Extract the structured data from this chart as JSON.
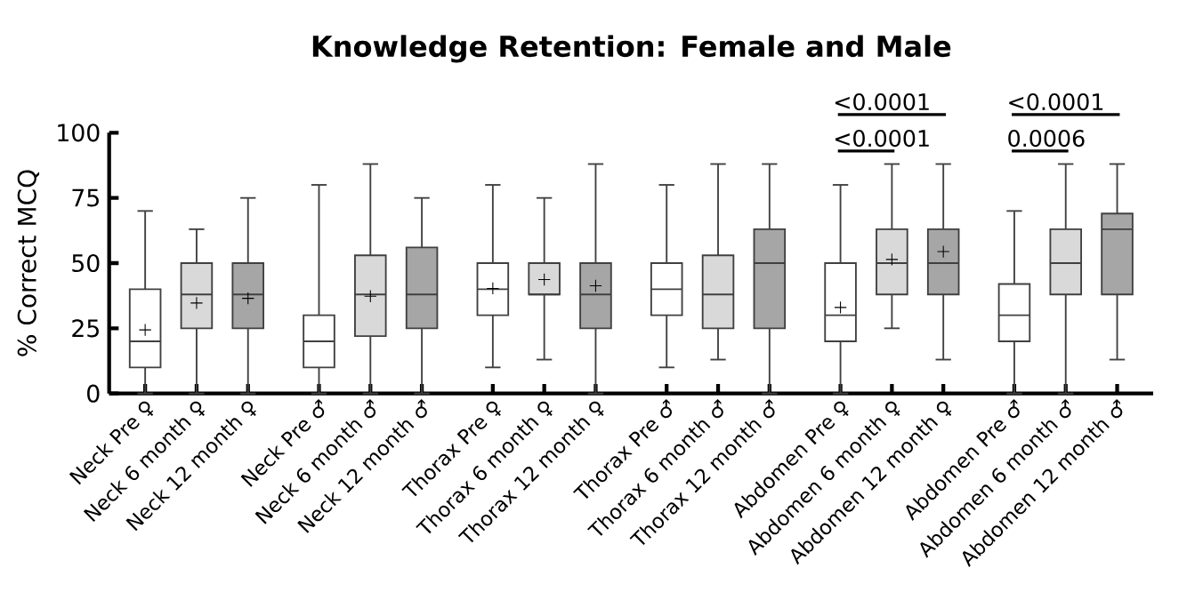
{
  "chart_data": {
    "type": "box",
    "title": "Knowledge Retention: Female and Male",
    "ylabel": "% Correct MCQ",
    "categories": [
      "Neck Pre ♀",
      "Neck 6 month ♀",
      "Neck 12 month ♀",
      "Neck Pre ♂",
      "Neck 6 month ♂",
      "Neck 12 month ♂",
      "Thorax Pre ♀",
      "Thorax 6 month ♀",
      "Thorax 12 month ♀",
      "Thorax Pre ♂",
      "Thorax 6 month ♂",
      "Thorax 12 month ♂",
      "Abdomen Pre ♀",
      "Abdomen 6 month ♀",
      "Abdomen 12 month ♀",
      "Abdomen Pre ♂",
      "Abdomen 6 month ♂",
      "Abdomen 12 month ♂"
    ],
    "colors": [
      "#ffffff",
      "#d9d9d9",
      "#a6a6a6",
      "#ffffff",
      "#d9d9d9",
      "#a6a6a6",
      "#ffffff",
      "#d9d9d9",
      "#a6a6a6",
      "#ffffff",
      "#d9d9d9",
      "#a6a6a6",
      "#ffffff",
      "#d9d9d9",
      "#a6a6a6",
      "#ffffff",
      "#d9d9d9",
      "#a6a6a6"
    ],
    "boxes": [
      {
        "low": 0,
        "q1": 10,
        "median": 20,
        "q3": 40,
        "high": 70,
        "mean": 24.4
      },
      {
        "low": 0,
        "q1": 25,
        "median": 38,
        "q3": 50,
        "high": 63,
        "mean": 34.7
      },
      {
        "low": 0,
        "q1": 25,
        "median": 38,
        "q3": 50,
        "high": 75,
        "mean": 36.5
      },
      {
        "low": 0,
        "q1": 10,
        "median": 20,
        "q3": 30,
        "high": 80
      },
      {
        "low": 0,
        "q1": 22,
        "median": 38,
        "q3": 53,
        "high": 88,
        "mean": 37.3
      },
      {
        "low": 0,
        "q1": 25,
        "median": 38,
        "q3": 56,
        "high": 75
      },
      {
        "low": 10,
        "q1": 30,
        "median": 40,
        "q3": 50,
        "high": 80,
        "mean": 40.3
      },
      {
        "low": 13,
        "q1": 38,
        "median": 38,
        "q3": 50,
        "high": 75,
        "mean": 43.7
      },
      {
        "low": 0,
        "q1": 25,
        "median": 38,
        "q3": 50,
        "high": 88,
        "mean": 41.3
      },
      {
        "low": 10,
        "q1": 30,
        "median": 40,
        "q3": 50,
        "high": 80
      },
      {
        "low": 13,
        "q1": 25,
        "median": 38,
        "q3": 53,
        "high": 88
      },
      {
        "low": 0,
        "q1": 25,
        "median": 50,
        "q3": 63,
        "high": 88
      },
      {
        "low": 0,
        "q1": 20,
        "median": 30,
        "q3": 50,
        "high": 80,
        "mean": 33
      },
      {
        "low": 25,
        "q1": 38,
        "median": 50,
        "q3": 63,
        "high": 88,
        "mean": 51.4
      },
      {
        "low": 13,
        "q1": 38,
        "median": 50,
        "q3": 63,
        "high": 88,
        "mean": 54.4
      },
      {
        "low": 0,
        "q1": 20,
        "median": 30,
        "q3": 42,
        "high": 70
      },
      {
        "low": 0,
        "q1": 38,
        "median": 50,
        "q3": 63,
        "high": 88
      },
      {
        "low": 13,
        "q1": 38,
        "median": 63,
        "q3": 69,
        "high": 88
      }
    ],
    "ylim": [
      0,
      100
    ],
    "yticks": [
      0,
      25,
      50,
      75,
      100
    ],
    "grid": false,
    "annotations": [
      "<0.0001",
      "<0.0001",
      "0.0006",
      "<0.0001"
    ]
  }
}
